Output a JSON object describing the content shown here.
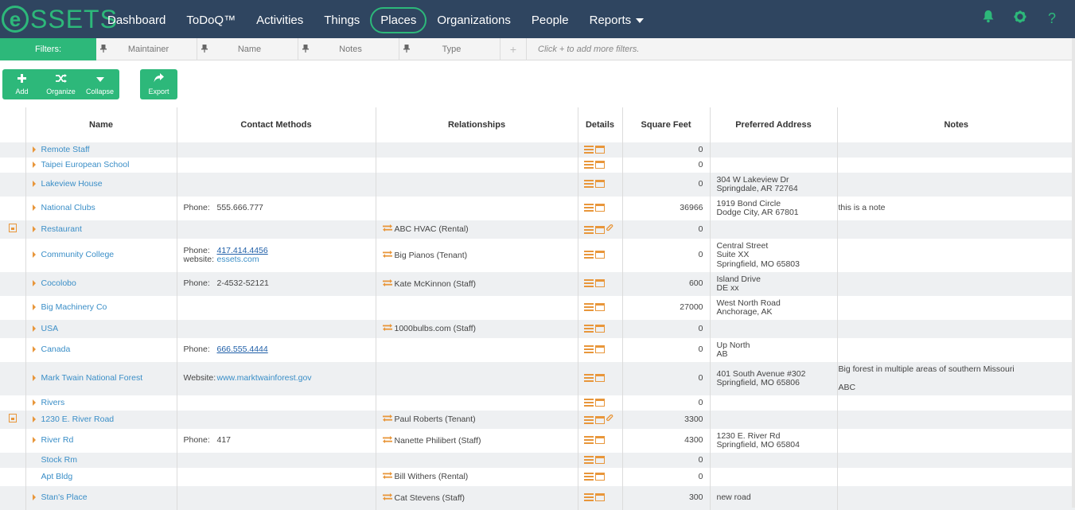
{
  "app": {
    "logo_letter": "e",
    "logo_text": "SSETS"
  },
  "nav": {
    "items": [
      {
        "label": "Dashboard"
      },
      {
        "label": "ToDoQ™"
      },
      {
        "label": "Activities"
      },
      {
        "label": "Things"
      },
      {
        "label": "Places",
        "active": true
      },
      {
        "label": "Organizations"
      },
      {
        "label": "People"
      },
      {
        "label": "Reports",
        "dropdown": true
      }
    ],
    "icons": [
      "bell-icon",
      "gear-icon",
      "help-icon"
    ],
    "help_glyph": "?"
  },
  "filters": {
    "label": "Filters:",
    "fields": [
      {
        "label": "Maintainer"
      },
      {
        "label": "Name"
      },
      {
        "label": "Notes"
      },
      {
        "label": "Type"
      }
    ],
    "plus": "+",
    "hint": "Click + to add more filters."
  },
  "toolbar": {
    "add_label": "Add",
    "organize_label": "Organize",
    "collapse_label": "Collapse",
    "export_label": "Export"
  },
  "colors": {
    "nav_bg": "#2f4560",
    "accent": "#2db87a",
    "icon_orange": "#e8963a",
    "link_blue": "#3a8ec7"
  },
  "table": {
    "headers": {
      "name": "Name",
      "contact": "Contact Methods",
      "relationships": "Relationships",
      "details": "Details",
      "sqft": "Square Feet",
      "address": "Preferred Address",
      "notes": "Notes"
    },
    "rows": [
      {
        "name": "Remote Staff",
        "caret": true,
        "file": false,
        "contact": [],
        "rel": "",
        "clip": false,
        "sqft": "0",
        "addr1": "",
        "addr2": "",
        "addr3": "",
        "notes1": "",
        "notes2": ""
      },
      {
        "name": "Taipei European School",
        "caret": true,
        "file": false,
        "contact": [],
        "rel": "",
        "clip": false,
        "sqft": "0",
        "addr1": "",
        "addr2": "",
        "addr3": "",
        "notes1": "",
        "notes2": ""
      },
      {
        "name": "Lakeview House",
        "caret": true,
        "file": false,
        "contact": [],
        "rel": "",
        "clip": false,
        "sqft": "0",
        "addr1": "304 W Lakeview Dr",
        "addr2": "Springdale, AR 72764",
        "addr3": "",
        "notes1": "",
        "notes2": ""
      },
      {
        "name": "National Clubs",
        "caret": true,
        "file": false,
        "contact": [
          {
            "label": "Phone:",
            "value": "555.666.777",
            "link": false
          }
        ],
        "rel": "",
        "clip": false,
        "sqft": "36966",
        "addr1": "1919 Bond Circle",
        "addr2": "Dodge City, AR 67801",
        "addr3": "",
        "notes1": "this is a note",
        "notes2": ""
      },
      {
        "name": "Restaurant",
        "caret": true,
        "file": true,
        "contact": [],
        "rel": "ABC HVAC (Rental)",
        "clip": true,
        "sqft": "0",
        "addr1": "",
        "addr2": "",
        "addr3": "",
        "notes1": "",
        "notes2": ""
      },
      {
        "name": "Community College",
        "caret": true,
        "file": false,
        "contact": [
          {
            "label": "Phone:",
            "value": "417.414.4456",
            "link": true,
            "ul": true
          },
          {
            "label": "website:",
            "value": "essets.com",
            "link": true,
            "ul": false
          }
        ],
        "rel": "Big Pianos (Tenant)",
        "clip": false,
        "sqft": "0",
        "addr1": "Central Street",
        "addr2": "Suite XX",
        "addr3": "Springfield, MO 65803",
        "notes1": "",
        "notes2": ""
      },
      {
        "name": "Cocolobo",
        "caret": true,
        "file": false,
        "contact": [
          {
            "label": "Phone:",
            "value": "2-4532-52121",
            "link": false
          }
        ],
        "rel": "Kate McKinnon (Staff)",
        "clip": false,
        "sqft": "600",
        "addr1": "Island Drive",
        "addr2": "DE xx",
        "addr3": "",
        "notes1": "",
        "notes2": ""
      },
      {
        "name": "Big Machinery Co",
        "caret": true,
        "file": false,
        "contact": [],
        "rel": "",
        "clip": false,
        "sqft": "27000",
        "addr1": "West North Road",
        "addr2": "Anchorage, AK",
        "addr3": "",
        "notes1": "",
        "notes2": ""
      },
      {
        "name": "USA",
        "caret": true,
        "file": false,
        "contact": [],
        "rel": "1000bulbs.com (Staff)",
        "clip": false,
        "sqft": "0",
        "addr1": "",
        "addr2": "",
        "addr3": "",
        "notes1": "",
        "notes2": ""
      },
      {
        "name": "Canada",
        "caret": true,
        "file": false,
        "contact": [
          {
            "label": "Phone:",
            "value": "666.555.4444",
            "link": true,
            "ul": true
          }
        ],
        "rel": "",
        "clip": false,
        "sqft": "0",
        "addr1": "Up North",
        "addr2": "AB",
        "addr3": "",
        "notes1": "",
        "notes2": ""
      },
      {
        "name": "Mark Twain National Forest",
        "caret": true,
        "file": false,
        "contact": [
          {
            "label": "Website:",
            "value": "www.marktwainforest.gov",
            "link": true,
            "ul": false
          }
        ],
        "rel": "",
        "clip": false,
        "sqft": "0",
        "addr1": "401 South Avenue #302",
        "addr2": "Springfield, MO 65806",
        "addr3": "",
        "notes1": "Big forest in multiple areas of southern Missouri",
        "notes2": "ABC"
      },
      {
        "name": "Rivers",
        "caret": true,
        "file": false,
        "contact": [],
        "rel": "",
        "clip": false,
        "sqft": "0",
        "addr1": "",
        "addr2": "",
        "addr3": "",
        "notes1": "",
        "notes2": ""
      },
      {
        "name": "1230 E. River Road",
        "caret": true,
        "file": true,
        "contact": [],
        "rel": "Paul Roberts (Tenant)",
        "clip": true,
        "sqft": "3300",
        "addr1": "",
        "addr2": "",
        "addr3": "",
        "notes1": "",
        "notes2": ""
      },
      {
        "name": "River Rd",
        "caret": true,
        "file": false,
        "contact": [
          {
            "label": "Phone:",
            "value": "417",
            "link": false
          }
        ],
        "rel": "Nanette Philibert (Staff)",
        "clip": false,
        "sqft": "4300",
        "addr1": "1230 E. River Rd",
        "addr2": "Springfield, MO 65804",
        "addr3": "",
        "notes1": "",
        "notes2": ""
      },
      {
        "name": "Stock Rm",
        "caret": false,
        "file": false,
        "contact": [],
        "rel": "",
        "clip": false,
        "sqft": "0",
        "addr1": "",
        "addr2": "",
        "addr3": "",
        "notes1": "",
        "notes2": ""
      },
      {
        "name": "Apt Bldg",
        "caret": false,
        "file": false,
        "contact": [],
        "rel": "Bill Withers (Rental)",
        "clip": false,
        "sqft": "0",
        "addr1": "",
        "addr2": "",
        "addr3": "",
        "notes1": "",
        "notes2": ""
      },
      {
        "name": "Stan's Place",
        "caret": true,
        "file": false,
        "contact": [],
        "rel": "Cat Stevens (Staff)",
        "clip": false,
        "sqft": "300",
        "addr1": "new road",
        "addr2": "",
        "addr3": "",
        "notes1": "",
        "notes2": ""
      }
    ]
  }
}
